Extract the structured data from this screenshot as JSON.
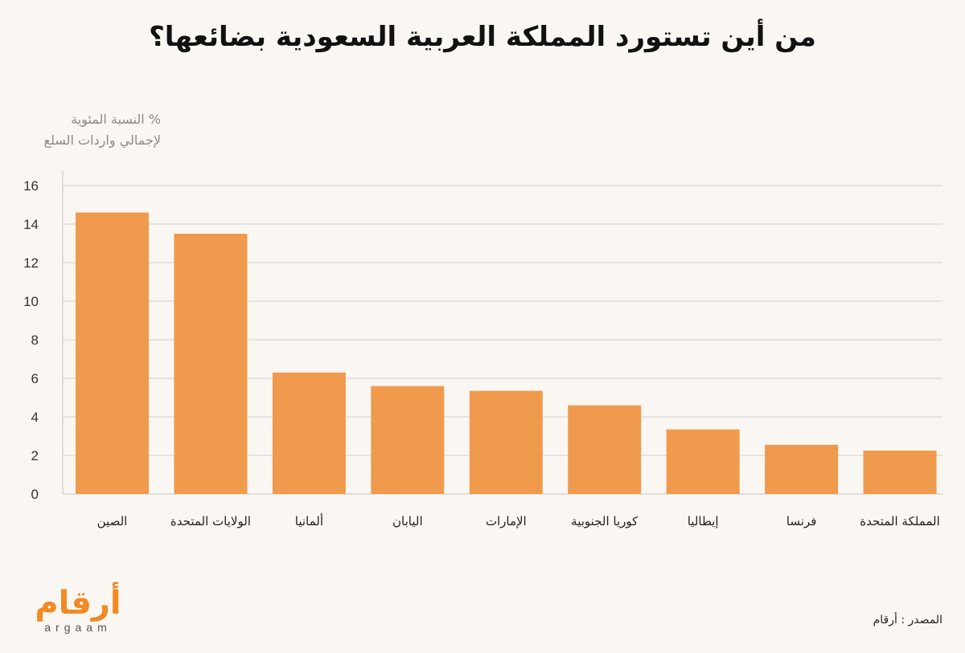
{
  "title": "من أين تستورد المملكة العربية السعودية بضائعها؟",
  "source": "المصدر : أرقام",
  "logo": {
    "arabic": "أرقام",
    "latin": "argaam",
    "color": "#f08a24"
  },
  "chart_data": {
    "type": "bar",
    "ylabel_lines": [
      "% النسبة المئوية",
      "لإجمالي واردات السلع"
    ],
    "xlabel": "",
    "categories": [
      "الصين",
      "الولايات المتحدة",
      "ألمانيا",
      "اليابان",
      "الإمارات",
      "كوريا الجنوبية",
      "إيطاليا",
      "فرنسا",
      "المملكة المتحدة"
    ],
    "values": [
      14.6,
      13.5,
      6.3,
      5.6,
      5.35,
      4.6,
      3.35,
      2.55,
      2.25
    ],
    "ylim": [
      0,
      16
    ],
    "yticks": [
      0,
      2,
      4,
      6,
      8,
      10,
      12,
      14,
      16
    ],
    "bar_color": "#f09a4d",
    "grid": true,
    "grid_color": "#dddddd"
  }
}
